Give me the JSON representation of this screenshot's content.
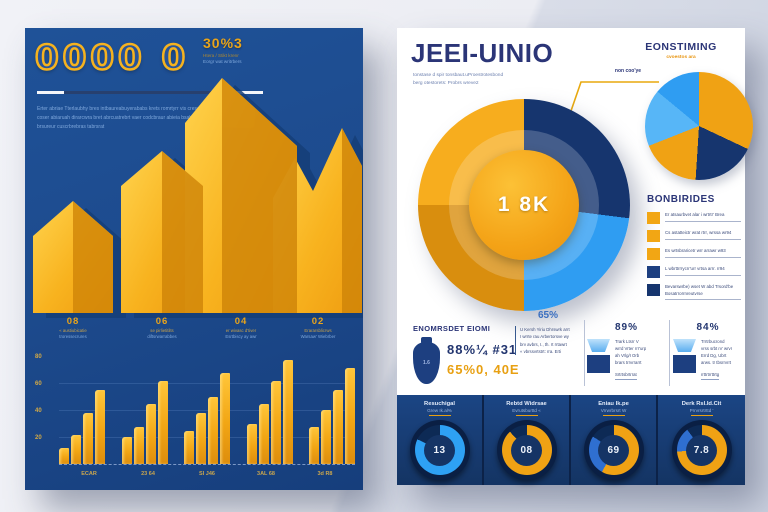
{
  "colors": {
    "panel_blue": "#1d4b8e",
    "navy": "#16356e",
    "gold": "#f2a614",
    "gold_light": "#ffc53e",
    "bright_blue": "#2f9df2",
    "light_blue": "#57b6f7",
    "title_navy": "#2b3577",
    "muted_blue_text": "#7fa8dc"
  },
  "left_panel": {
    "counter": "0000 0",
    "intro_lines": "Erter abriae Tterlaubhy bres intbaureabuyerababs krets romrtyrr vis crese coser abiaruah dirarcwra bret abrcuatrebrt vaer codcbraur abieia bsabrra brsureur cuscrbrebras tabrsrat",
    "year_value": "30%3",
    "year_caption_1": "Htera / Stikt krenr",
    "year_caption_2": "Eorgr wat writrbers",
    "arrow_labels": [
      {
        "value": "08",
        "line1": "« austiubicatie",
        "line2": "troressecrures"
      },
      {
        "value": "06",
        "line1": "se pirlietitilts",
        "line2": "diftsrwarrabbes"
      },
      {
        "value": "04",
        "line1": "er wivasc d'tiver",
        "line2": "Esrtbiscy ay awr"
      },
      {
        "value": "02",
        "line1": "Erararsblicrws",
        "line2": "Warsaw' Wiebrber"
      }
    ],
    "mini_chart": {
      "yticks": [
        "80",
        "60",
        "40",
        "20"
      ],
      "xlabels": [
        "ECAR",
        "23 64",
        "SI J46",
        "3AL 68",
        "3d R8"
      ]
    }
  },
  "right_panel": {
    "title": "JEEI-UINIO",
    "subtitle_1": "tonstase d spir tonsbaut.uProestrotesbond",
    "subtitle_2": "berg otestorets: Probrs wreve2",
    "topright_heading": "EONSTIMING",
    "topright_sub": "cvoestos ara",
    "callout_label": "non coo'ye",
    "donut_center": "1 8K",
    "legend": {
      "header": "BONBIRIDES",
      "items": [
        {
          "color": "#f2a614",
          "text": "Er atsaurbvet alar i wrtrtr' Brea"
        },
        {
          "color": "#f2a614",
          "text": "Cs astatteictr wrat rtrr, wrssa wr94"
        },
        {
          "color": "#f2a614",
          "text": "Es wrtsbraricetr wrr arrawr w93"
        },
        {
          "color": "#1d3f80",
          "text": "L wbrttrrrycrr'urr vrtsa arrr. rr94"
        },
        {
          "color": "#16356e",
          "text": "Bevarswrbe) wset W abd Trsord'be Bosatrrorrnreutvrse"
        }
      ]
    },
    "stats": {
      "col1": {
        "header": "ENOMRSDET EIOMI",
        "icon_label": "1.6",
        "value_navy": "88%¼ #31",
        "value_gold": "65%0, 40E"
      },
      "col2": {
        "header": "65%",
        "lines": [
          "U Kersh Yiriu Dhrswrk arrt",
          "I wrrte rau Arbertorsve wy",
          "brv avbrs, I., th. rt rrtawrt",
          "« vbrssvrtstrt: rra. Erti"
        ]
      },
      "col3": {
        "header": "89%",
        "lines": [
          "Trark Ltsrr V",
          "wrrd Vrter rrr'urp",
          "ah Vrlg/I Orb",
          "brars trrvrrarrt",
          "Srtrtsbrtrrat"
        ]
      },
      "col4": {
        "header": "84%",
        "lines": [
          "Trrtrbucrond",
          "vrss srbt rv' wrvr",
          "Errd Dg, Ubrt",
          "arws. tr tbsrrvrrt",
          "rrttrtrrttrtg"
        ]
      }
    },
    "cards": [
      {
        "title": "Resuchigal",
        "sub": "Grew Ik.al%",
        "value": "13"
      },
      {
        "title": "Rebtd Widrsae",
        "sub": "Evrutsburttd «",
        "value": "08"
      },
      {
        "title": "Eniau Ik.pe",
        "sub": "Vrrwrbrsrt W",
        "value": "69"
      },
      {
        "title": "Derk Rsl.Id.Cit",
        "sub": "Prrvrsrtrttd '",
        "value": "7.8"
      }
    ]
  },
  "chart_data": [
    {
      "type": "bar",
      "id": "growth-arrows",
      "title": "3D golden arrow bars on navy panel",
      "categories": [
        "08",
        "06",
        "04",
        "02"
      ],
      "values": [
        62,
        78,
        100,
        75
      ],
      "ylim": [
        0,
        100
      ]
    },
    {
      "type": "bar",
      "id": "mini-grouped-bars",
      "categories": [
        "ECAR",
        "23 64",
        "SI J46",
        "3AL 68",
        "3d R8"
      ],
      "groups": [
        [
          12,
          22,
          38,
          55
        ],
        [
          20,
          28,
          45,
          62
        ],
        [
          25,
          38,
          50,
          68
        ],
        [
          30,
          45,
          62,
          78
        ],
        [
          28,
          40,
          55,
          72
        ]
      ],
      "ylim": [
        0,
        80
      ],
      "yticks": [
        80,
        60,
        40,
        20
      ],
      "grid": true
    },
    {
      "type": "pie",
      "id": "main-donut",
      "center_label": "1 8K",
      "segments": [
        {
          "label": "navy",
          "color": "#16356e",
          "pct": 27
        },
        {
          "label": "bright-blue",
          "color": "#2f9df2",
          "pct": 23
        },
        {
          "label": "gold-dark",
          "color": "#d98e0e",
          "pct": 25
        },
        {
          "label": "gold-light",
          "color": "#f7ad1e",
          "pct": 25
        }
      ],
      "legend_position": "right"
    },
    {
      "type": "pie",
      "id": "small-pie",
      "segments": [
        {
          "color": "#f0a214",
          "pct": 32
        },
        {
          "color": "#16356e",
          "pct": 19
        },
        {
          "color": "#f0a214",
          "pct": 18
        },
        {
          "color": "#57b6f7",
          "pct": 17
        },
        {
          "color": "#2f9df2",
          "pct": 14
        }
      ]
    },
    {
      "type": "donut-gauges",
      "id": "kpi-gauges",
      "items": [
        {
          "value": "13",
          "segments": [
            {
              "color": "#2ea1f4",
              "pct": 82
            },
            {
              "color": "#0d2a55",
              "pct": 18
            }
          ]
        },
        {
          "value": "08",
          "segments": [
            {
              "color": "#f0a214",
              "pct": 88
            },
            {
              "color": "#0d2a55",
              "pct": 12
            }
          ]
        },
        {
          "value": "69",
          "segments": [
            {
              "color": "#f0a214",
              "pct": 58
            },
            {
              "color": "#2f6fd0",
              "pct": 26
            },
            {
              "color": "#0d2a55",
              "pct": 16
            }
          ]
        },
        {
          "value": "7.8",
          "segments": [
            {
              "color": "#f0a214",
              "pct": 74
            },
            {
              "color": "#2f6fd0",
              "pct": 16
            },
            {
              "color": "#0d2a55",
              "pct": 10
            }
          ]
        }
      ]
    }
  ]
}
